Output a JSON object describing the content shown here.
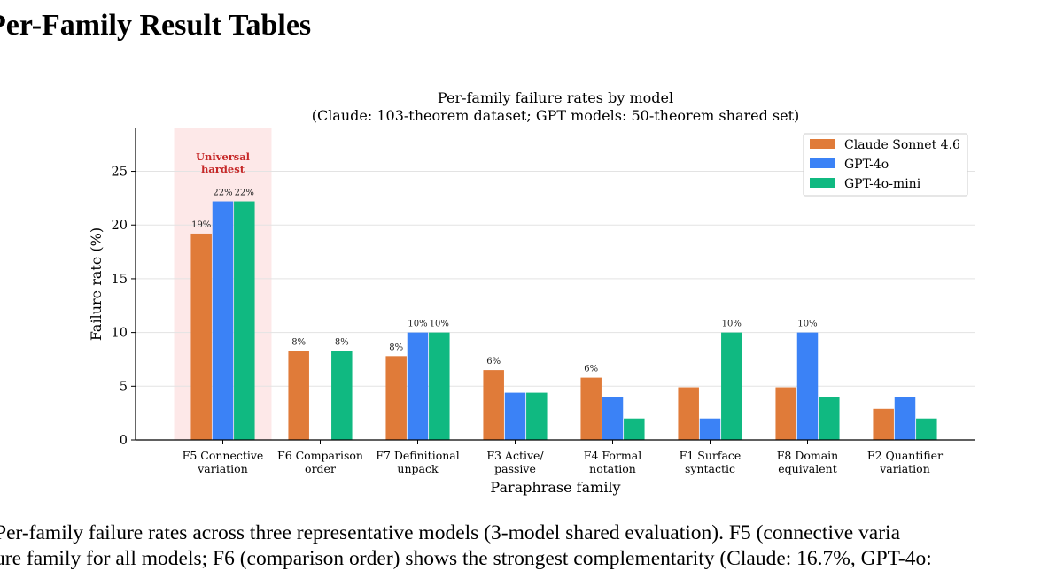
{
  "heading": "Per-Family Result Tables",
  "chart_data": {
    "type": "bar",
    "title": "Per-family failure rates by model",
    "subtitle": "(Claude: 103-theorem dataset; GPT models: 50-theorem shared set)",
    "xlabel": "Paraphrase family",
    "ylabel": "Failure rate (%)",
    "ylim": [
      0,
      29
    ],
    "yticks": [
      0,
      5,
      10,
      15,
      20,
      25
    ],
    "grid": true,
    "legend_position": "top-right",
    "categories": [
      [
        "F5 Connective",
        "variation"
      ],
      [
        "F6 Comparison",
        "order"
      ],
      [
        "F7 Definitional",
        "unpack"
      ],
      [
        "F3 Active/",
        "passive"
      ],
      [
        "F4 Formal",
        "notation"
      ],
      [
        "F1 Surface",
        "syntactic"
      ],
      [
        "F8 Domain",
        "equivalent"
      ],
      [
        "F2 Quantifier",
        "variation"
      ]
    ],
    "series": [
      {
        "name": "Claude Sonnet 4.6",
        "color": "#e07b39",
        "values": [
          19.2,
          8.3,
          7.8,
          6.5,
          5.8,
          4.9,
          4.9,
          2.9
        ],
        "labels": [
          "19%",
          "8%",
          "8%",
          "6%",
          "6%",
          "",
          "",
          ""
        ]
      },
      {
        "name": "GPT-4o",
        "color": "#3b82f6",
        "values": [
          22.2,
          0,
          10,
          4.4,
          4,
          2,
          10,
          4
        ],
        "labels": [
          "22%",
          "",
          "10%",
          "",
          "",
          "",
          "10%",
          ""
        ]
      },
      {
        "name": "GPT-4o-mini",
        "color": "#10b981",
        "values": [
          22.2,
          8.3,
          10,
          4.4,
          2,
          10,
          4,
          2
        ],
        "labels": [
          "22%",
          "8%",
          "10%",
          "",
          "",
          "10%",
          "",
          ""
        ]
      }
    ],
    "highlight": {
      "category_index": 0,
      "label": [
        "Universal",
        "hardest"
      ],
      "color": "#c62828",
      "fill": "#fde8e8"
    }
  },
  "caption": [
    "Per-family failure rates across three representative models (3-model shared evaluation).  F5 (connective varia",
    "ure family for all models; F6 (comparison order) shows the strongest complementarity (Claude: 16.7%, GPT-4o:"
  ]
}
